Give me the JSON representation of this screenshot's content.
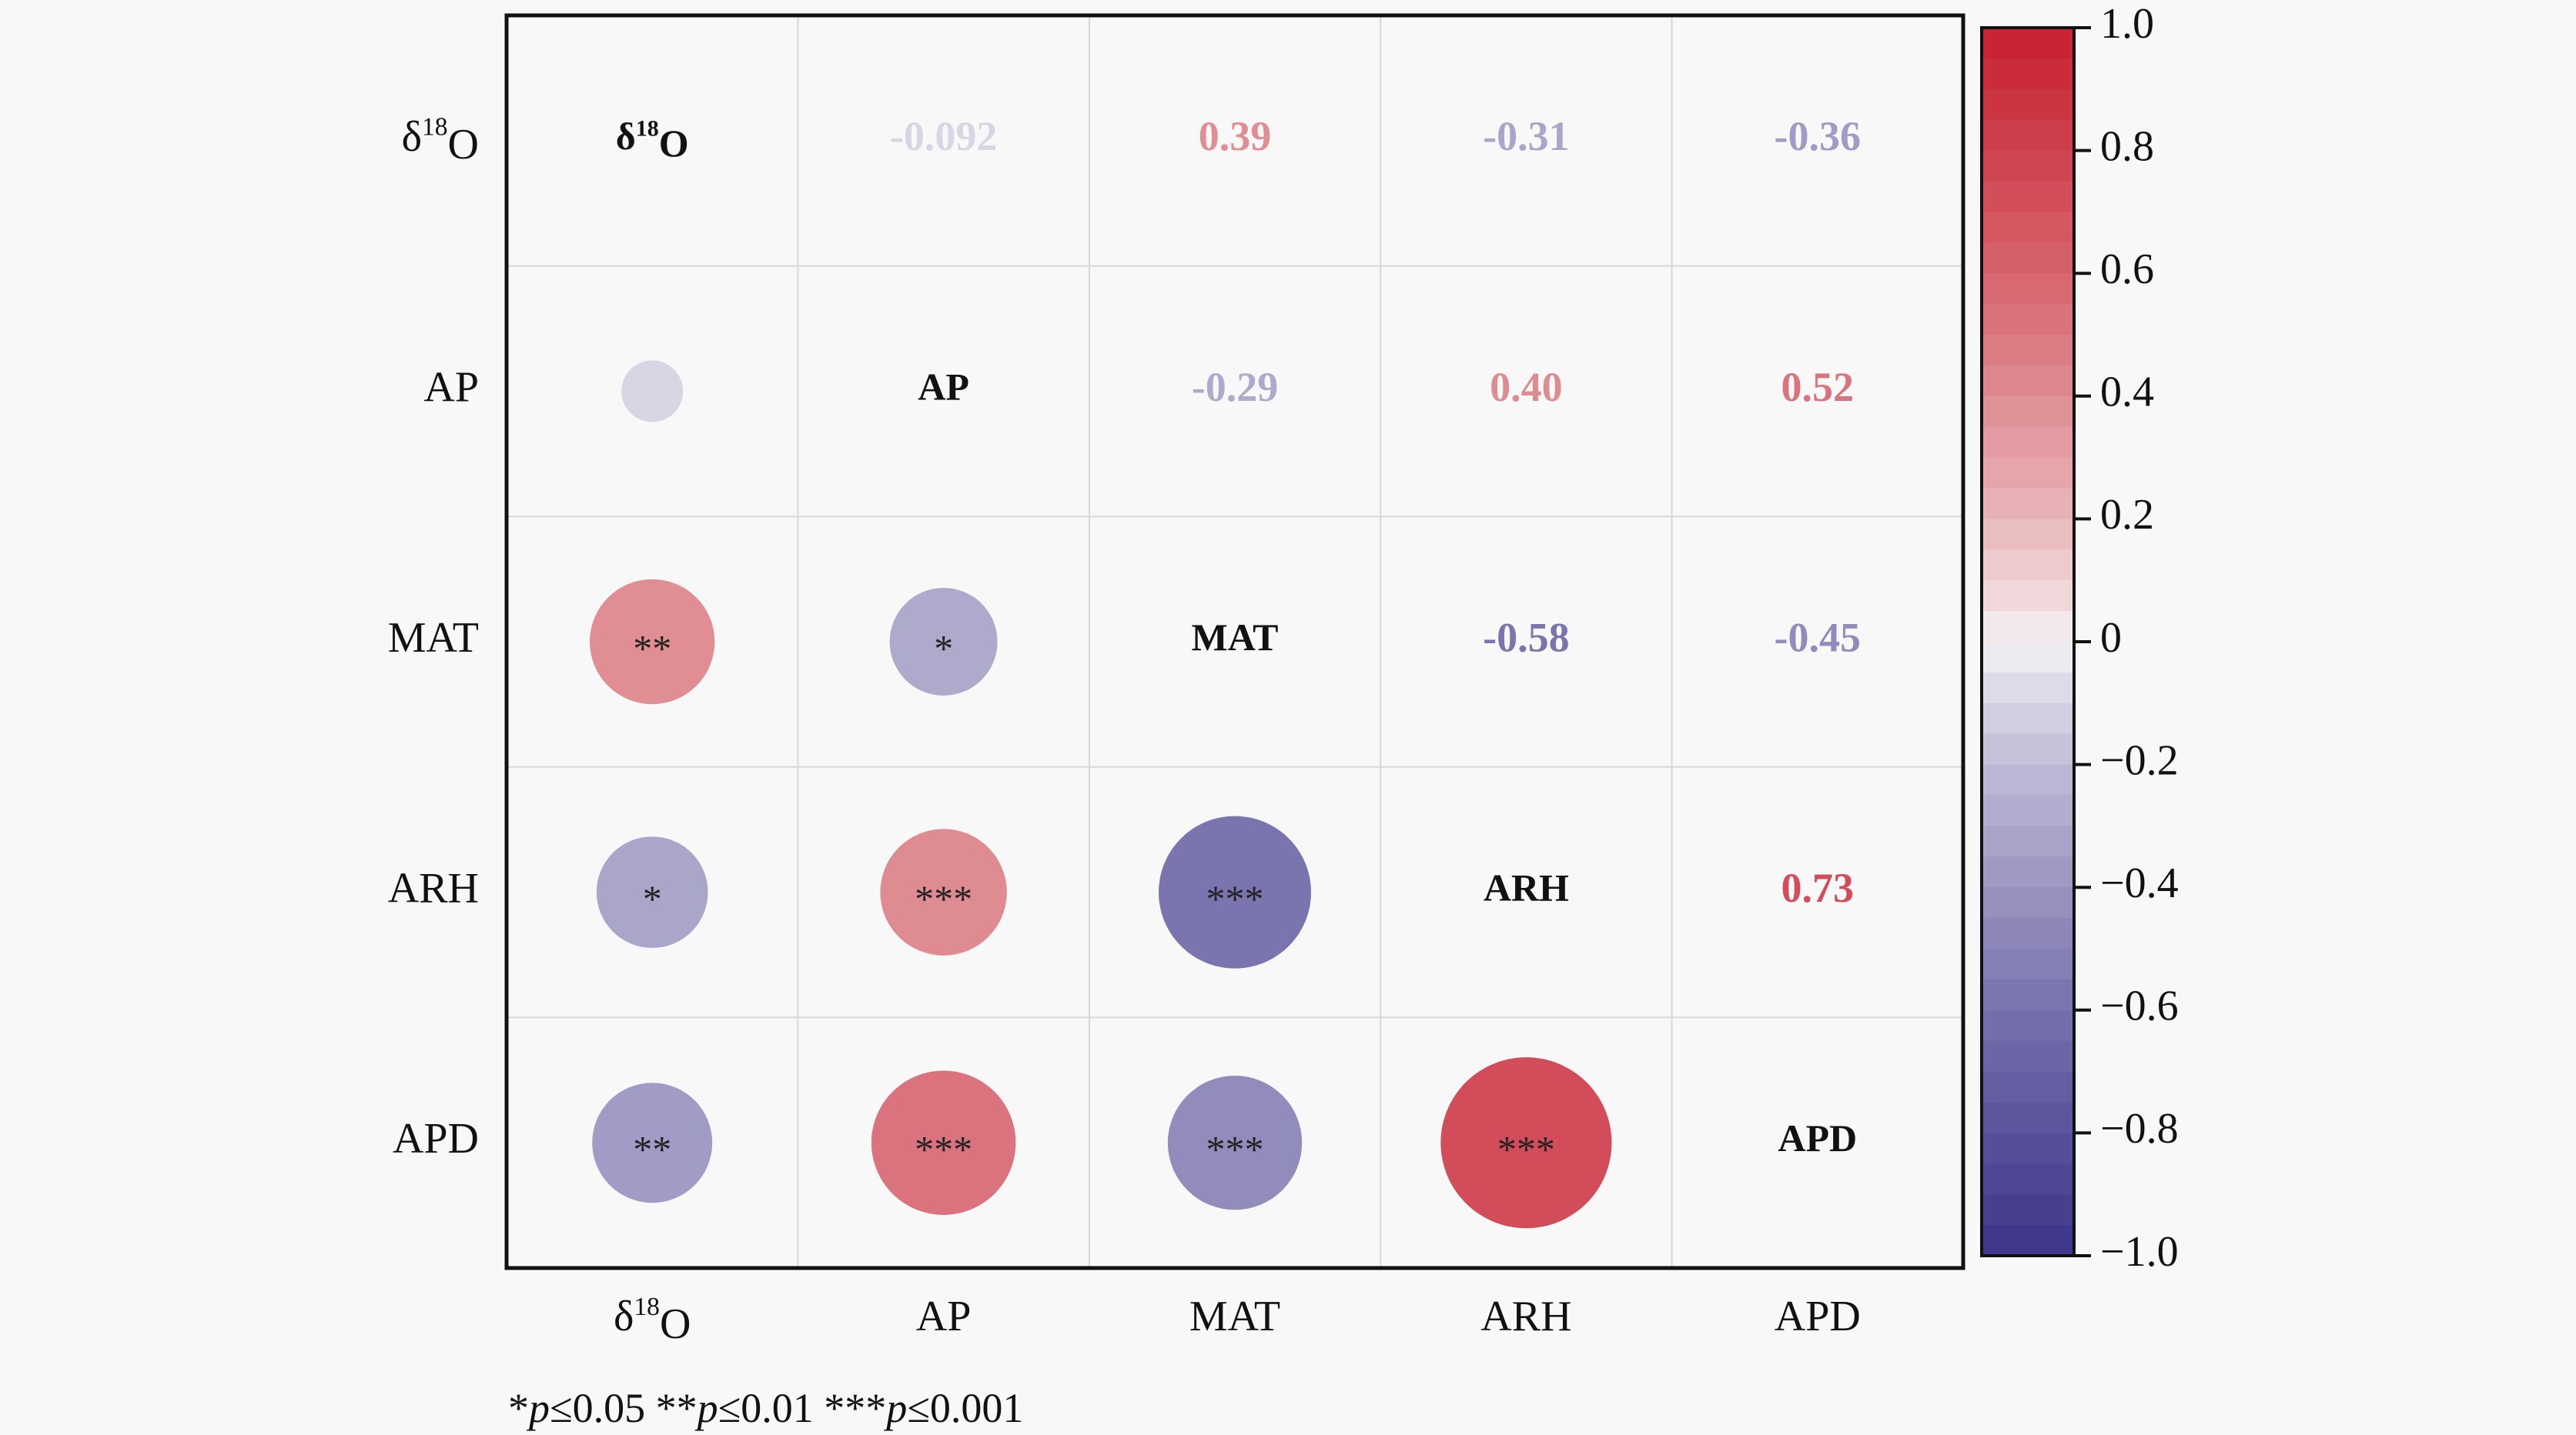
{
  "chart_data": {
    "type": "heatmap",
    "variables": [
      {
        "key": "d18O",
        "label": "δ",
        "sup": "18",
        "tail": "O"
      },
      {
        "key": "AP",
        "label": "AP",
        "sup": "",
        "tail": ""
      },
      {
        "key": "MAT",
        "label": "MAT",
        "sup": "",
        "tail": ""
      },
      {
        "key": "ARH",
        "label": "ARH",
        "sup": "",
        "tail": ""
      },
      {
        "key": "APD",
        "label": "APD",
        "sup": "",
        "tail": ""
      }
    ],
    "matrix": [
      [
        1,
        -0.092,
        0.39,
        -0.31,
        -0.36
      ],
      [
        -0.092,
        1,
        -0.29,
        0.4,
        0.52
      ],
      [
        0.39,
        -0.29,
        1,
        -0.58,
        -0.45
      ],
      [
        -0.31,
        0.4,
        -0.58,
        1,
        0.73
      ],
      [
        -0.36,
        0.52,
        -0.45,
        0.73,
        1
      ]
    ],
    "upper_labels": [
      [
        "",
        "-0.092",
        "0.39",
        "-0.31",
        "-0.36"
      ],
      [
        "",
        "",
        "-0.29",
        "0.40",
        "0.52"
      ],
      [
        "",
        "",
        "",
        "-0.58",
        "-0.45"
      ],
      [
        "",
        "",
        "",
        "",
        "0.73"
      ],
      [
        "",
        "",
        "",
        "",
        ""
      ]
    ],
    "significance": [
      [
        "",
        "",
        "",
        "",
        ""
      ],
      [
        "",
        "",
        "",
        "",
        ""
      ],
      [
        "**",
        "*",
        "",
        "",
        ""
      ],
      [
        "*",
        "***",
        "***",
        "",
        ""
      ],
      [
        "**",
        "***",
        "***",
        "***",
        ""
      ]
    ],
    "colorbar": {
      "range": [
        -1.0,
        1.0
      ],
      "ticks": [
        "1.0",
        "0.8",
        "0.6",
        "0.4",
        "0.2",
        "0",
        "−0.2",
        "−0.4",
        "−0.6",
        "−0.8",
        "−1.0"
      ],
      "tick_values": [
        1.0,
        0.8,
        0.6,
        0.4,
        0.2,
        0,
        -0.2,
        -0.4,
        -0.6,
        -0.8,
        -1.0
      ],
      "neg_color": "#3d348b",
      "pos_color": "#c8202f",
      "mid_color": "#f7f7f7"
    },
    "grid": true,
    "legend": "right"
  },
  "footnote": {
    "parts": [
      {
        "t": "*",
        "i": false
      },
      {
        "t": "p",
        "i": true
      },
      {
        "t": "≤0.05",
        "i": false
      },
      {
        "t": "   **",
        "i": false
      },
      {
        "t": "p",
        "i": true
      },
      {
        "t": "≤0.01",
        "i": false
      },
      {
        "t": "   ***",
        "i": false
      },
      {
        "t": "p",
        "i": true
      },
      {
        "t": "≤0.001",
        "i": false
      }
    ]
  }
}
